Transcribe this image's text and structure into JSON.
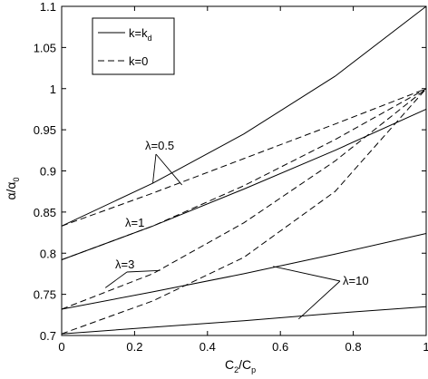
{
  "chart_data": {
    "type": "line",
    "xlabel": {
      "main": "C",
      "sub1": "2",
      "slash": "/C",
      "sub2": "p"
    },
    "ylabel": {
      "main": "α/α",
      "sub": "0"
    },
    "xlim": [
      0,
      1
    ],
    "ylim": [
      0.7,
      1.1
    ],
    "xticks": [
      0,
      0.2,
      0.4,
      0.6,
      0.8,
      1
    ],
    "xtick_labels": [
      "0",
      "0.2",
      "0.4",
      "0.6",
      "0.8",
      "1"
    ],
    "yticks": [
      0.7,
      0.75,
      0.8,
      0.85,
      0.9,
      0.95,
      1,
      1.05,
      1.1
    ],
    "ytick_labels": [
      "0.7",
      "0.75",
      "0.8",
      "0.85",
      "0.9",
      "0.95",
      "1",
      "1.05",
      "1.1"
    ],
    "grid": false,
    "legend_position": "top-left",
    "legend": [
      {
        "style": "solid",
        "label": {
          "main": "k=k",
          "sub": "d"
        }
      },
      {
        "style": "dashed",
        "label": {
          "main": "k=0",
          "sub": ""
        }
      }
    ],
    "series": [
      {
        "group": "λ=0.5",
        "style": "solid",
        "x": [
          0,
          0.25,
          0.5,
          0.75,
          1
        ],
        "y": [
          0.833,
          0.885,
          0.945,
          1.015,
          1.1
        ]
      },
      {
        "group": "λ=0.5",
        "style": "dashed",
        "x": [
          0,
          0.25,
          0.5,
          0.75,
          1
        ],
        "y": [
          0.833,
          0.873,
          0.915,
          0.957,
          1.0
        ]
      },
      {
        "group": "λ=1",
        "style": "solid",
        "x": [
          0,
          0.25,
          0.5,
          0.75,
          1
        ],
        "y": [
          0.792,
          0.833,
          0.878,
          0.925,
          0.975
        ]
      },
      {
        "group": "λ=1",
        "style": "dashed",
        "x": [
          0,
          0.25,
          0.5,
          0.75,
          1
        ],
        "y": [
          0.792,
          0.833,
          0.882,
          0.938,
          1.0
        ]
      },
      {
        "group": "λ=3",
        "style": "solid",
        "x": [
          0,
          0.25,
          0.5,
          0.75,
          1
        ],
        "y": [
          0.732,
          0.753,
          0.775,
          0.799,
          0.824
        ]
      },
      {
        "group": "λ=3",
        "style": "dashed",
        "x": [
          0,
          0.25,
          0.5,
          0.75,
          1
        ],
        "y": [
          0.732,
          0.775,
          0.837,
          0.912,
          1.0
        ]
      },
      {
        "group": "λ=10",
        "style": "solid",
        "x": [
          0,
          0.25,
          0.5,
          0.75,
          1
        ],
        "y": [
          0.702,
          0.71,
          0.718,
          0.727,
          0.735
        ]
      },
      {
        "group": "λ=10",
        "style": "dashed",
        "x": [
          0,
          0.25,
          0.5,
          0.75,
          1
        ],
        "y": [
          0.702,
          0.742,
          0.795,
          0.875,
          1.0
        ]
      }
    ],
    "annotations": [
      {
        "text": "λ=0.5",
        "points_to": [
          [
            0.25,
            0.885
          ],
          [
            0.33,
            0.883
          ]
        ]
      },
      {
        "text": "λ=1",
        "points_to": []
      },
      {
        "text": "λ=3",
        "points_to": [
          [
            0.12,
            0.758
          ],
          [
            0.27,
            0.779
          ]
        ]
      },
      {
        "text": "λ=10",
        "points_to": [
          [
            0.58,
            0.784
          ],
          [
            0.65,
            0.72
          ]
        ]
      }
    ]
  }
}
